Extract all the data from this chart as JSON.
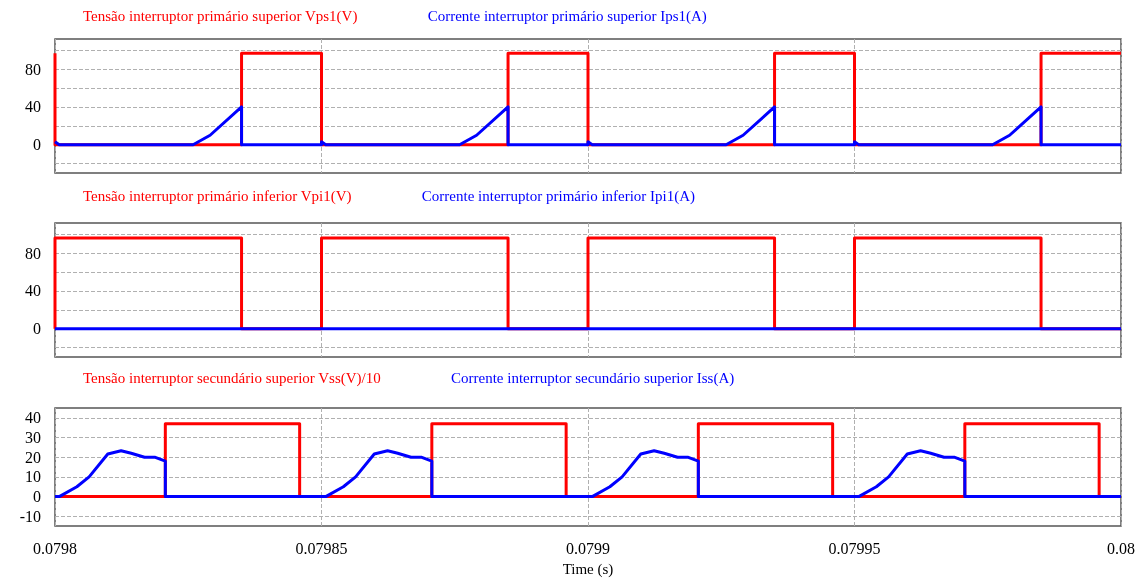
{
  "chart_data": [
    {
      "type": "line",
      "legend": "top left",
      "grid": true,
      "marker": "none",
      "line_style": "solid",
      "tick_labels": "y",
      "xlim": [
        0.0798,
        0.08
      ],
      "xticks": [
        {
          "value": 0.0798,
          "label": null
        },
        {
          "value": 0.07985,
          "label": null
        },
        {
          "value": 0.0799,
          "label": null
        },
        {
          "value": 0.07995,
          "label": null
        },
        {
          "value": 0.08,
          "label": null
        }
      ],
      "ylim": [
        -30,
        112
      ],
      "yticks": [
        {
          "value": -20,
          "label": null
        },
        0,
        {
          "value": 20,
          "label": null
        },
        40,
        {
          "value": 60,
          "label": null
        },
        80,
        {
          "value": 100,
          "label": null
        }
      ],
      "series": [
        {
          "name": "Tensão interruptor primário superior Vps1(V)",
          "color": "#ff0000",
          "x": [
            0.0798,
            0.0798,
            0.079835,
            0.079835,
            0.07985,
            0.07985,
            0.079885,
            0.079885,
            0.0799,
            0.0799,
            0.079935,
            0.079935,
            0.07995,
            0.07995,
            0.079985,
            0.079985,
            0.08
          ],
          "values": [
            97,
            0,
            0,
            97,
            97,
            0,
            0,
            97,
            97,
            0,
            0,
            97,
            97,
            0,
            0,
            97,
            97
          ]
        },
        {
          "name": "Corrente interruptor primário superior Ips1(A)",
          "color": "#0000ff",
          "x": [
            0.0798,
            0.0798008,
            0.0798259,
            0.0798291,
            0.079835,
            0.079835,
            0.07985,
            0.07985,
            0.0798508,
            0.0798759,
            0.0798791,
            0.079885,
            0.079885,
            0.0799,
            0.0799,
            0.0799008,
            0.0799259,
            0.0799291,
            0.079935,
            0.079935,
            0.07995,
            0.07995,
            0.0799508,
            0.0799759,
            0.0799791,
            0.079985,
            0.079985,
            0.08
          ],
          "values": [
            3,
            0,
            0,
            10,
            40,
            0,
            0,
            3,
            0,
            0,
            10,
            40,
            0,
            0,
            3,
            0,
            0,
            10,
            40,
            0,
            0,
            3,
            0,
            0,
            10,
            40,
            0,
            0
          ]
        }
      ]
    },
    {
      "type": "line",
      "legend": "top left",
      "grid": true,
      "marker": "none",
      "line_style": "solid",
      "tick_labels": "y",
      "xlim": [
        0.0798,
        0.08
      ],
      "xticks": [
        {
          "value": 0.0798,
          "label": null
        },
        {
          "value": 0.07985,
          "label": null
        },
        {
          "value": 0.0799,
          "label": null
        },
        {
          "value": 0.07995,
          "label": null
        },
        {
          "value": 0.08,
          "label": null
        }
      ],
      "ylim": [
        -30,
        112
      ],
      "yticks": [
        {
          "value": -20,
          "label": null
        },
        0,
        {
          "value": 20,
          "label": null
        },
        40,
        {
          "value": 60,
          "label": null
        },
        80,
        {
          "value": 100,
          "label": null
        }
      ],
      "series": [
        {
          "name": "Tensão interruptor primário inferior Vpi1(V)",
          "color": "#ff0000",
          "x": [
            0.0798,
            0.0798,
            0.079835,
            0.079835,
            0.07985,
            0.07985,
            0.079885,
            0.079885,
            0.0799,
            0.0799,
            0.079935,
            0.079935,
            0.07995,
            0.07995,
            0.079985,
            0.079985,
            0.08
          ],
          "values": [
            0,
            96,
            96,
            0,
            0,
            96,
            96,
            0,
            0,
            96,
            96,
            0,
            0,
            96,
            96,
            0,
            0
          ]
        },
        {
          "name": "Corrente interruptor primário inferior Ipi1(A)",
          "color": "#0000ff",
          "x": [
            0.0798,
            0.08
          ],
          "values": [
            0,
            0
          ]
        }
      ]
    },
    {
      "type": "line",
      "legend": "top left",
      "grid": true,
      "marker": "none",
      "line_style": "solid",
      "xlabel": "Time (s)",
      "xlim": [
        0.0798,
        0.08
      ],
      "xticks": [
        0.0798,
        0.07985,
        0.0799,
        0.07995,
        0.08
      ],
      "ylim": [
        -15,
        45
      ],
      "yticks": [
        -10,
        0,
        10,
        20,
        30,
        40
      ],
      "series": [
        {
          "name": "Tensão interruptor secundário superior Vss(V)/10",
          "color": "#ff0000",
          "x": [
            0.0798,
            0.0798207,
            0.0798207,
            0.0798459,
            0.0798459,
            0.0798707,
            0.0798707,
            0.0798959,
            0.0798959,
            0.0799207,
            0.0799207,
            0.0799459,
            0.0799459,
            0.0799707,
            0.0799707,
            0.0799959,
            0.0799959,
            0.08
          ],
          "values": [
            0,
            0,
            37,
            37,
            0,
            0,
            37,
            37,
            0,
            0,
            37,
            37,
            0,
            0,
            37,
            37,
            0,
            0
          ]
        },
        {
          "name": "Corrente interruptor secundário superior Iss(A)",
          "color": "#0000ff",
          "x": [
            0.0798,
            0.0798008,
            0.0798041,
            0.0798064,
            0.0798099,
            0.0798124,
            0.0798143,
            0.0798168,
            0.0798187,
            0.0798207,
            0.0798207,
            0.0798508,
            0.0798541,
            0.0798564,
            0.0798599,
            0.0798624,
            0.0798643,
            0.0798668,
            0.0798687,
            0.0798707,
            0.0798707,
            0.0799008,
            0.0799041,
            0.0799064,
            0.0799099,
            0.0799124,
            0.0799143,
            0.0799168,
            0.0799187,
            0.0799207,
            0.0799207,
            0.0799508,
            0.0799541,
            0.0799564,
            0.0799599,
            0.0799624,
            0.0799643,
            0.0799668,
            0.0799687,
            0.0799707,
            0.0799707,
            0.08
          ],
          "values": [
            0,
            0,
            5,
            10,
            21.6,
            23.3,
            22,
            20,
            20,
            18,
            0,
            0,
            5,
            10,
            21.6,
            23.3,
            22,
            20,
            20,
            18,
            0,
            0,
            5,
            10,
            21.6,
            23.3,
            22,
            20,
            20,
            18,
            0,
            0,
            5,
            10,
            21.6,
            23.3,
            22,
            20,
            20,
            18,
            0,
            0
          ]
        }
      ]
    }
  ]
}
